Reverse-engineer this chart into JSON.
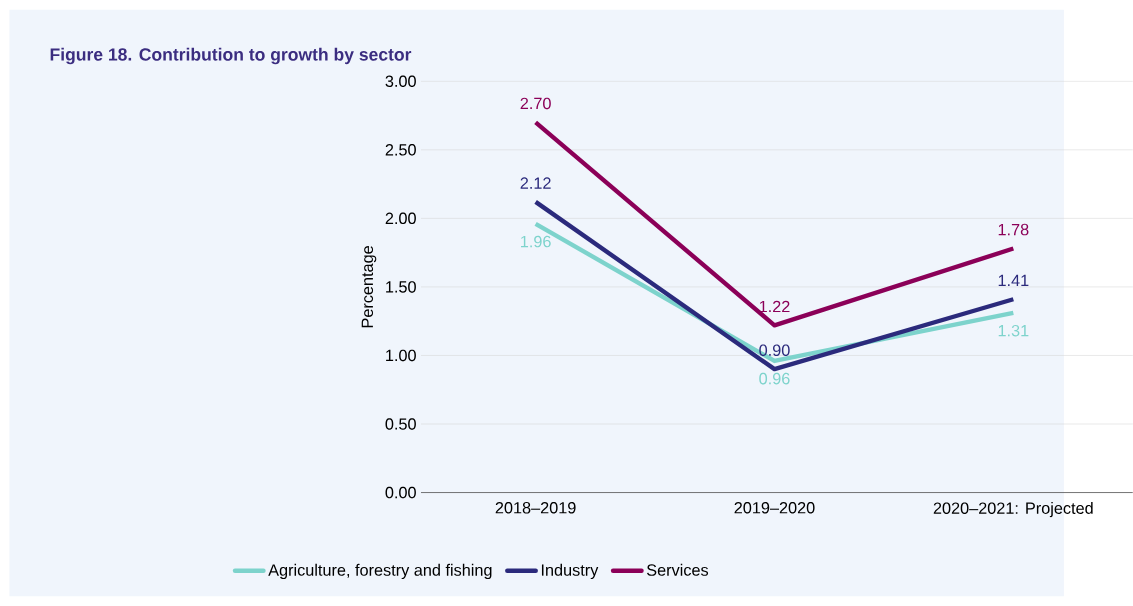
{
  "chart_data": {
    "type": "line",
    "title": "Figure 18. Contribution to growth by sector",
    "ylabel": "Percentage",
    "categories": [
      "2018–2019",
      "2019–2020",
      "2020–2021: Projected"
    ],
    "series": [
      {
        "name": "Agriculture, forestry and fishing",
        "color": "#7dd3cc",
        "values": [
          1.96,
          0.96,
          1.31
        ],
        "value_labels": [
          "1.96",
          "0.96",
          "1.31"
        ]
      },
      {
        "name": "Industry",
        "color": "#2b2a7c",
        "values": [
          2.12,
          0.9,
          1.41
        ],
        "value_labels": [
          "2.12",
          "0.90",
          "1.41"
        ]
      },
      {
        "name": "Services",
        "color": "#8b0058",
        "values": [
          2.7,
          1.22,
          1.78
        ],
        "value_labels": [
          "2.70",
          "1.22",
          "1.78"
        ]
      }
    ],
    "ylim": [
      0,
      3
    ],
    "yticks": [
      {
        "value": 0,
        "label": "0.00"
      },
      {
        "value": 0.5,
        "label": "0.50"
      },
      {
        "value": 1,
        "label": "1.00"
      },
      {
        "value": 1.5,
        "label": "1.50"
      },
      {
        "value": 2,
        "label": "2.00"
      },
      {
        "value": 2.5,
        "label": "2.50"
      },
      {
        "value": 3,
        "label": "3.00"
      }
    ],
    "grid": "y",
    "legend": "bottom",
    "marker": "none",
    "line_style": "solid"
  }
}
